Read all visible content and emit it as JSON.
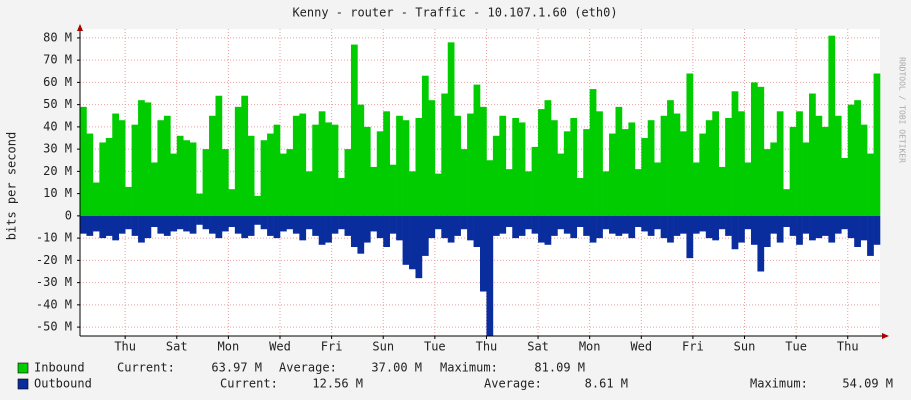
{
  "chart_data": {
    "type": "bar",
    "title": "Kenny - router - Traffic - 10.107.1.60 (eth0)",
    "y_label": "bits per second",
    "watermark": "RRDTOOL / TOBI OETIKER",
    "xlim": [
      0,
      124
    ],
    "xticks": [
      {
        "value": 7,
        "label": "Thu"
      },
      {
        "value": 15,
        "label": "Sat"
      },
      {
        "value": 23,
        "label": "Mon"
      },
      {
        "value": 31,
        "label": "Wed"
      },
      {
        "value": 39,
        "label": "Fri"
      },
      {
        "value": 47,
        "label": "Sun"
      },
      {
        "value": 55,
        "label": "Tue"
      },
      {
        "value": 63,
        "label": "Thu"
      },
      {
        "value": 71,
        "label": "Sat"
      },
      {
        "value": 79,
        "label": "Mon"
      },
      {
        "value": 87,
        "label": "Wed"
      },
      {
        "value": 95,
        "label": "Fri"
      },
      {
        "value": 103,
        "label": "Sun"
      },
      {
        "value": 111,
        "label": "Tue"
      },
      {
        "value": 119,
        "label": "Thu"
      }
    ],
    "ylim": [
      -54,
      84
    ],
    "yticks": [
      {
        "value": 80,
        "label": "80 M"
      },
      {
        "value": 70,
        "label": "70 M"
      },
      {
        "value": 60,
        "label": "60 M"
      },
      {
        "value": 50,
        "label": "50 M"
      },
      {
        "value": 40,
        "label": "40 M"
      },
      {
        "value": 30,
        "label": "30 M"
      },
      {
        "value": 20,
        "label": "20 M"
      },
      {
        "value": 10,
        "label": "10 M"
      },
      0,
      {
        "value": -10,
        "label": "-10 M"
      },
      {
        "value": -20,
        "label": "-20 M"
      },
      {
        "value": -30,
        "label": "-30 M"
      },
      {
        "value": -40,
        "label": "-40 M"
      },
      {
        "value": -50,
        "label": "-50 M"
      }
    ],
    "grid": true,
    "series": [
      {
        "name": "Inbound",
        "color": "#00cc00",
        "values": [
          49,
          37,
          15,
          33,
          35,
          46,
          43,
          13,
          41,
          52,
          51,
          24,
          43,
          45,
          28,
          36,
          34,
          33,
          10,
          30,
          45,
          54,
          30,
          12,
          49,
          54,
          36,
          9,
          34,
          37,
          41,
          28,
          30,
          45,
          46,
          20,
          41,
          47,
          42,
          41,
          17,
          30,
          77,
          50,
          40,
          22,
          38,
          47,
          23,
          45,
          43,
          20,
          44,
          63,
          52,
          19,
          55,
          78,
          45,
          30,
          46,
          59,
          49,
          25,
          36,
          45,
          21,
          44,
          42,
          20,
          31,
          48,
          52,
          43,
          28,
          38,
          44,
          17,
          39,
          57,
          47,
          20,
          37,
          49,
          39,
          42,
          21,
          35,
          43,
          24,
          45,
          52,
          46,
          38,
          64,
          24,
          37,
          43,
          47,
          22,
          44,
          56,
          47,
          24,
          60,
          58,
          30,
          33,
          47,
          12,
          40,
          47,
          33,
          55,
          45,
          40,
          81,
          45,
          26,
          50,
          52,
          41,
          28,
          64
        ],
        "stats": [
          {
            "label": "Current:",
            "value": "63.97 M"
          },
          {
            "label": "Average:",
            "value": "37.00 M"
          },
          {
            "label": "Maximum:",
            "value": "81.09 M"
          }
        ]
      },
      {
        "name": "Outbound",
        "color": "#0a2d9e",
        "values": [
          -8,
          -9,
          -7,
          -10,
          -9,
          -11,
          -8,
          -6,
          -9,
          -12,
          -10,
          -5,
          -8,
          -9,
          -7,
          -6,
          -7,
          -8,
          -4,
          -6,
          -8,
          -10,
          -7,
          -5,
          -8,
          -10,
          -9,
          -4,
          -6,
          -9,
          -10,
          -7,
          -6,
          -8,
          -11,
          -6,
          -9,
          -13,
          -12,
          -8,
          -6,
          -9,
          -14,
          -17,
          -12,
          -7,
          -10,
          -14,
          -8,
          -11,
          -22,
          -24,
          -28,
          -18,
          -10,
          -6,
          -10,
          -12,
          -9,
          -6,
          -11,
          -14,
          -34,
          -54,
          -9,
          -8,
          -5,
          -10,
          -9,
          -6,
          -8,
          -12,
          -13,
          -9,
          -6,
          -8,
          -10,
          -5,
          -9,
          -12,
          -10,
          -6,
          -8,
          -9,
          -8,
          -10,
          -5,
          -7,
          -9,
          -6,
          -10,
          -12,
          -9,
          -8,
          -19,
          -8,
          -7,
          -10,
          -11,
          -6,
          -9,
          -15,
          -12,
          -6,
          -13,
          -25,
          -14,
          -8,
          -12,
          -5,
          -9,
          -13,
          -8,
          -11,
          -10,
          -9,
          -12,
          -8,
          -6,
          -10,
          -14,
          -11,
          -18,
          -13
        ],
        "stats": [
          {
            "label": "Current:",
            "value": "12.56 M"
          },
          {
            "label": "Average:",
            "value": "8.61 M"
          },
          {
            "label": "Maximum:",
            "value": "54.09 M"
          }
        ]
      }
    ]
  }
}
